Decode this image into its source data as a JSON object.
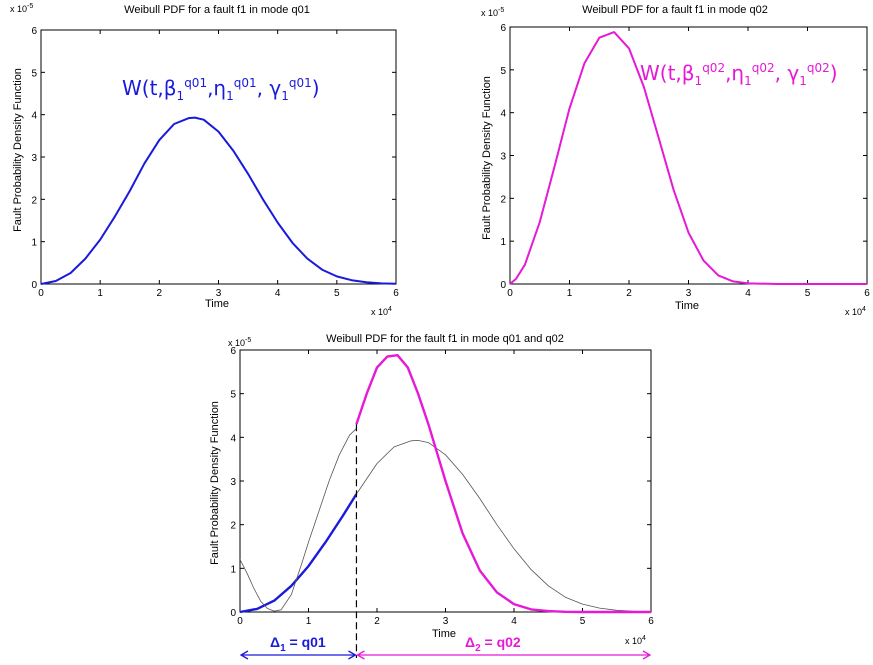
{
  "colors": {
    "q01": "#1a1adc",
    "q02": "#e619d6",
    "weak": "#555555",
    "axis": "#000000"
  },
  "chart_data": [
    {
      "id": "p1",
      "type": "line",
      "title": "Weibull PDF for a fault f1 in mode q01",
      "xlabel": "Time",
      "ylabel": "Fault Probability Density Function",
      "x_multiplier": "x 10",
      "x_exp": "4",
      "y_multiplier": "x 10",
      "y_exp": "-5",
      "xlim": [
        0,
        6
      ],
      "ylim": [
        0,
        6
      ],
      "xticks": [
        "0",
        "1",
        "2",
        "3",
        "4",
        "5",
        "6"
      ],
      "yticks": [
        "0",
        "1",
        "2",
        "3",
        "4",
        "5",
        "6"
      ],
      "series": [
        {
          "label_parts": {
            "base": "W(t,β",
            "s1": "1",
            "p1": "q01",
            "m1": ",η",
            "s2": "1",
            "p2": "q01",
            "m2": ", γ",
            "s3": "1",
            "p3": "q01",
            "end": ")"
          },
          "x": [
            0,
            0.25,
            0.5,
            0.75,
            1.0,
            1.25,
            1.5,
            1.75,
            2.0,
            2.25,
            2.5,
            2.6,
            2.75,
            3.0,
            3.25,
            3.5,
            3.75,
            4.0,
            4.25,
            4.5,
            4.75,
            5.0,
            5.25,
            5.5,
            5.75,
            6.0
          ],
          "y": [
            0,
            0.07,
            0.26,
            0.6,
            1.05,
            1.6,
            2.2,
            2.85,
            3.4,
            3.78,
            3.92,
            3.93,
            3.88,
            3.6,
            3.15,
            2.6,
            2.0,
            1.45,
            0.97,
            0.6,
            0.34,
            0.18,
            0.09,
            0.04,
            0.015,
            0.005
          ]
        }
      ]
    },
    {
      "id": "p2",
      "type": "line",
      "title": "Weibull PDF for a fault f1 in mode q02",
      "xlabel": "Time",
      "ylabel": "Fault Probability Density Function",
      "x_multiplier": "x 10",
      "x_exp": "4",
      "y_multiplier": "x 10",
      "y_exp": "-5",
      "xlim": [
        0,
        6
      ],
      "ylim": [
        0,
        6
      ],
      "xticks": [
        "0",
        "1",
        "2",
        "3",
        "4",
        "5",
        "6"
      ],
      "yticks": [
        "0",
        "1",
        "2",
        "3",
        "4",
        "5",
        "6"
      ],
      "series": [
        {
          "label_parts": {
            "base": "W(t,β",
            "s1": "1",
            "p1": "q02",
            "m1": ",η",
            "s2": "1",
            "p2": "q02",
            "m2": ", γ",
            "s3": "1",
            "p3": "q02",
            "end": ")"
          },
          "x": [
            0,
            0.1,
            0.25,
            0.5,
            0.75,
            1.0,
            1.25,
            1.5,
            1.75,
            2.0,
            2.25,
            2.5,
            2.75,
            3.0,
            3.25,
            3.5,
            3.75,
            4.0,
            4.5,
            5.0,
            5.5,
            6.0
          ],
          "y": [
            0,
            0.12,
            0.45,
            1.45,
            2.75,
            4.1,
            5.15,
            5.75,
            5.88,
            5.5,
            4.6,
            3.4,
            2.2,
            1.2,
            0.55,
            0.2,
            0.06,
            0.015,
            0.001,
            0,
            0,
            0
          ]
        }
      ]
    },
    {
      "id": "p3",
      "type": "line",
      "title": "Weibull PDF for the fault f1 in mode q01 and q02",
      "xlabel": "Time",
      "ylabel": "Fault Probability Density Function",
      "x_multiplier": "x 10",
      "x_exp": "4",
      "y_multiplier": "x 10",
      "y_exp": "-5",
      "xlim": [
        0,
        6
      ],
      "ylim": [
        0,
        6
      ],
      "xticks": [
        "0",
        "1",
        "2",
        "3",
        "4",
        "5",
        "6"
      ],
      "yticks": [
        "0",
        "1",
        "2",
        "3",
        "4",
        "5",
        "6"
      ],
      "switch_x": 1.7,
      "switch_top": 4.3,
      "series": [
        {
          "role": "q01-active",
          "x": [
            0,
            0.25,
            0.5,
            0.75,
            1.0,
            1.25,
            1.5,
            1.7
          ],
          "y": [
            0,
            0.07,
            0.26,
            0.6,
            1.05,
            1.6,
            2.2,
            2.7
          ]
        },
        {
          "role": "q01-continued",
          "x": [
            1.7,
            2.0,
            2.25,
            2.5,
            2.6,
            2.75,
            3.0,
            3.25,
            3.5,
            3.75,
            4.0,
            4.25,
            4.5,
            4.75,
            5.0,
            5.25,
            5.5,
            5.75,
            6.0
          ],
          "y": [
            2.7,
            3.4,
            3.78,
            3.92,
            3.93,
            3.88,
            3.6,
            3.15,
            2.6,
            2.0,
            1.45,
            0.97,
            0.6,
            0.34,
            0.18,
            0.09,
            0.04,
            0.015,
            0.005
          ]
        },
        {
          "role": "q02-shifted-thin",
          "x": [
            0,
            0.1,
            0.2,
            0.3,
            0.4,
            0.5,
            0.6,
            0.75,
            0.9,
            1.0,
            1.15,
            1.3,
            1.45,
            1.6,
            1.7
          ],
          "y": [
            1.2,
            0.9,
            0.55,
            0.25,
            0.08,
            0.02,
            0.05,
            0.4,
            1.1,
            1.6,
            2.3,
            3.0,
            3.6,
            4.05,
            4.2
          ]
        },
        {
          "role": "q02-active",
          "x": [
            1.7,
            1.85,
            2.0,
            2.15,
            2.3,
            2.45,
            2.6,
            2.75,
            3.0,
            3.25,
            3.5,
            3.75,
            4.0,
            4.25,
            4.5,
            4.75,
            5.0,
            5.5,
            6.0
          ],
          "y": [
            4.3,
            5.0,
            5.6,
            5.85,
            5.88,
            5.6,
            5.0,
            4.3,
            3.0,
            1.8,
            0.95,
            0.45,
            0.18,
            0.06,
            0.02,
            0.005,
            0.001,
            0,
            0
          ]
        }
      ],
      "intervals": [
        {
          "delta": "Δ",
          "sub": "1",
          "rest": " = q01",
          "x_from": 0,
          "x_to": 1.7
        },
        {
          "delta": "Δ",
          "sub": "2",
          "rest": " = q02",
          "x_from": 1.7,
          "x_to": 6
        }
      ]
    }
  ]
}
